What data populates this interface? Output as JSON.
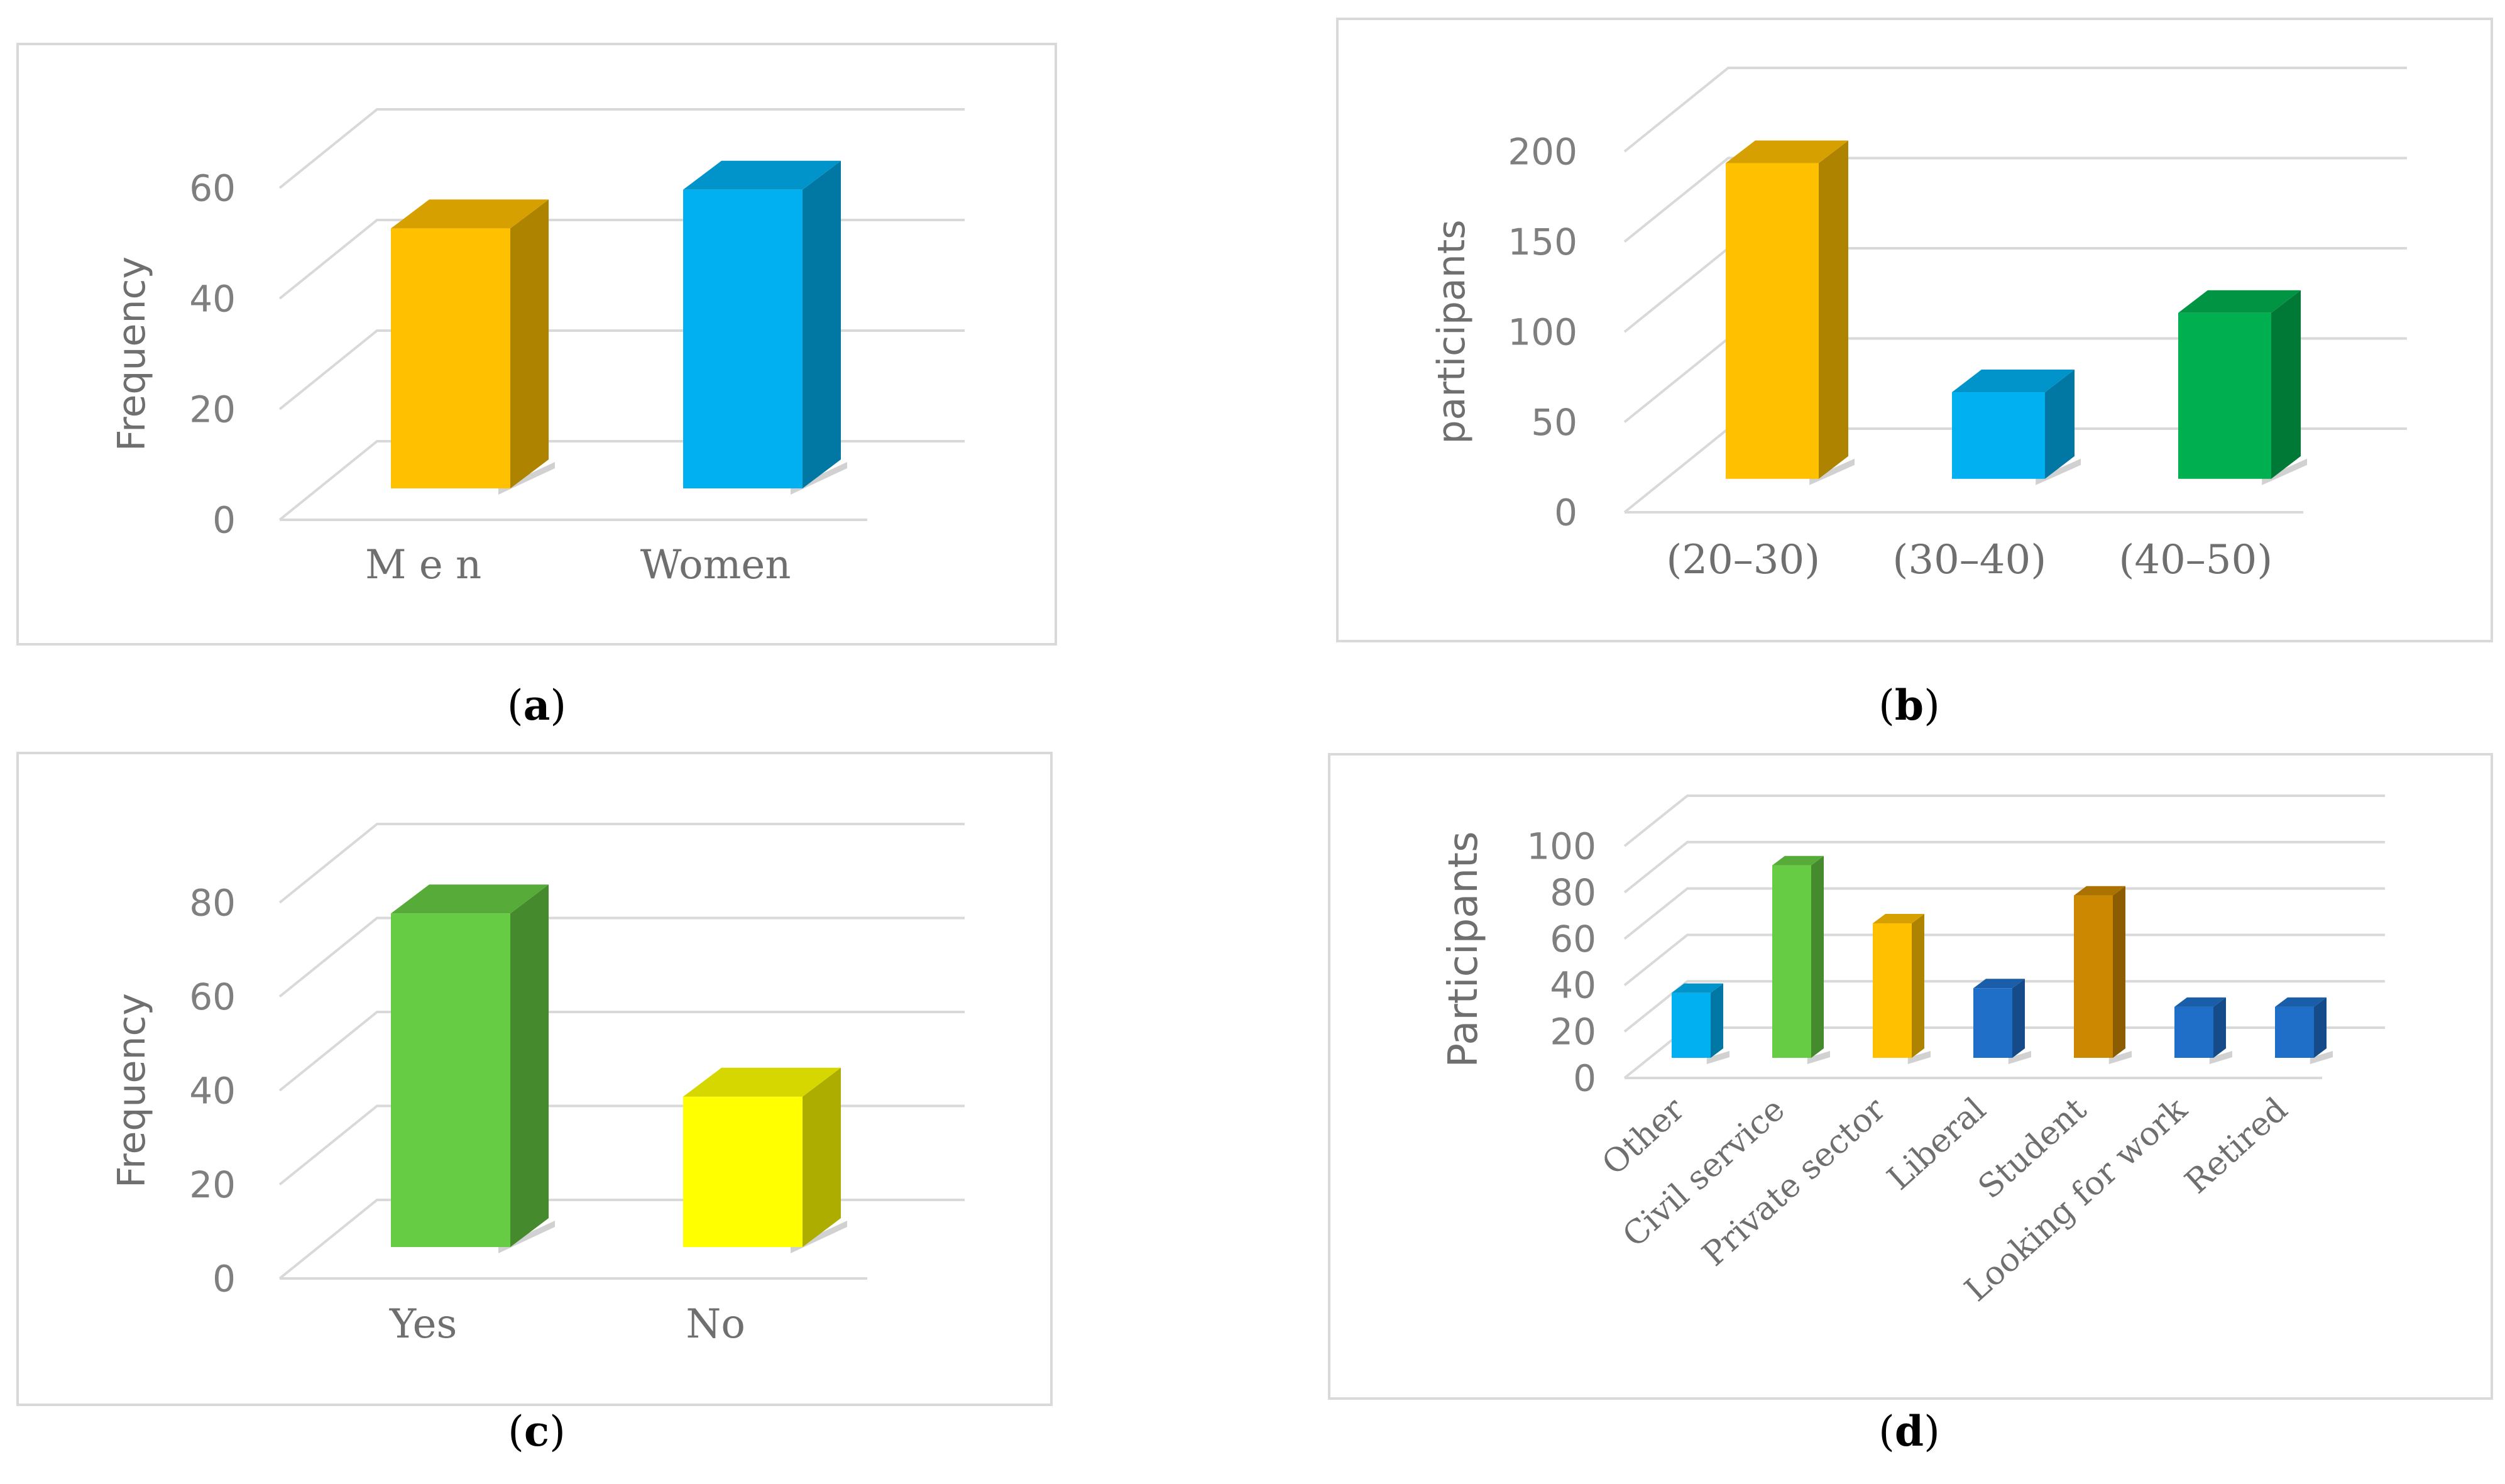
{
  "chart_data": [
    {
      "id": "a",
      "type": "bar",
      "panel_label": "a",
      "categories": [
        "M e n",
        "Women"
      ],
      "values": [
        47,
        54
      ],
      "colors": [
        "#FFC000",
        "#00B0F0"
      ],
      "ylabel": "Frequency",
      "xlabel": "",
      "title": "",
      "ylim": [
        0,
        60
      ],
      "yticks": [
        0,
        20,
        40,
        60
      ],
      "grid": true
    },
    {
      "id": "b",
      "type": "bar",
      "panel_label": "b",
      "categories": [
        "(20–30)",
        "(30–40)",
        "(40–50)"
      ],
      "values": [
        175,
        48,
        92
      ],
      "colors": [
        "#FFC000",
        "#00B0F0",
        "#00B050"
      ],
      "ylabel": "participants",
      "xlabel": "",
      "title": "",
      "ylim": [
        0,
        200
      ],
      "yticks": [
        0,
        50,
        100,
        150,
        200
      ],
      "grid": true
    },
    {
      "id": "c",
      "type": "bar",
      "panel_label": "c",
      "categories": [
        "Yes",
        "No"
      ],
      "values": [
        71,
        32
      ],
      "colors": [
        "#66CC44",
        "#FFFF00"
      ],
      "ylabel": "Frequency",
      "xlabel": "",
      "title": "",
      "ylim": [
        0,
        80
      ],
      "yticks": [
        0,
        20,
        40,
        60,
        80
      ],
      "grid": true
    },
    {
      "id": "d",
      "type": "bar",
      "panel_label": "d",
      "categories": [
        "Other",
        "Civil service",
        "Private sector",
        "Liberal",
        "Student",
        "Looking for work",
        "Retired"
      ],
      "values": [
        28,
        83,
        58,
        30,
        70,
        22,
        22
      ],
      "colors": [
        "#00B0F0",
        "#66CC44",
        "#FFC000",
        "#1F6FC8",
        "#CC8800",
        "#1F6FC8",
        "#1F6FC8"
      ],
      "ylabel": "Participants",
      "xlabel": "",
      "title": "",
      "ylim": [
        0,
        100
      ],
      "yticks": [
        0,
        20,
        40,
        60,
        80,
        100
      ],
      "grid": true
    }
  ]
}
